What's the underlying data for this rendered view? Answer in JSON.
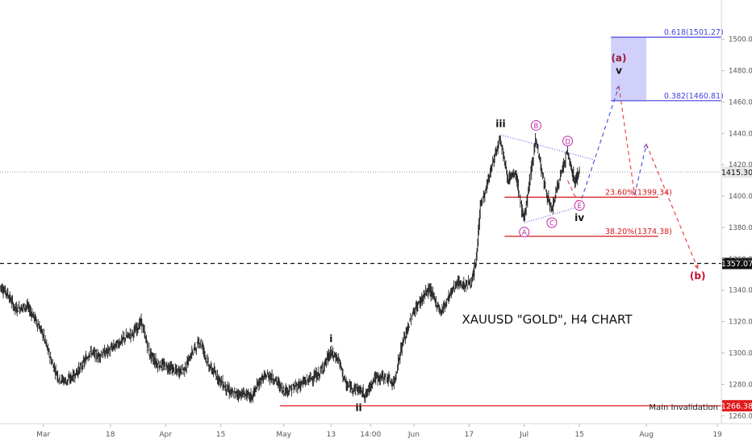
{
  "chart_data": {
    "type": "line",
    "symbol": "XAUUSD",
    "timeframe": "H4",
    "title": "XAUUSD \"GOLD\", H4 CHART",
    "xlabel": "",
    "ylabel": "",
    "ylim": [
      1255,
      1525
    ],
    "x_range": [
      "2019-02-18",
      "2019-08-20"
    ],
    "y_ticks": [
      1260,
      1280,
      1300,
      1320,
      1340,
      1360,
      1380,
      1400,
      1420,
      1440,
      1460,
      1480,
      1500
    ],
    "x_ticks": [
      {
        "date": "2019-03-01",
        "label": "Mar"
      },
      {
        "date": "2019-03-18",
        "label": "18"
      },
      {
        "date": "2019-04-01",
        "label": "Apr"
      },
      {
        "date": "2019-04-15",
        "label": "15"
      },
      {
        "date": "2019-05-01",
        "label": "May"
      },
      {
        "date": "2019-05-13",
        "label": "13"
      },
      {
        "date": "2019-05-23",
        "label": "14:00"
      },
      {
        "date": "2019-06-03",
        "label": "Jun"
      },
      {
        "date": "2019-06-17",
        "label": "17"
      },
      {
        "date": "2019-07-01",
        "label": "Jul"
      },
      {
        "date": "2019-07-15",
        "label": "15"
      },
      {
        "date": "2019-08-01",
        "label": "Aug"
      },
      {
        "date": "2019-08-19",
        "label": "19"
      }
    ],
    "price_path": [
      {
        "d": "2019-02-18",
        "p": 1343
      },
      {
        "d": "2019-02-20",
        "p": 1338
      },
      {
        "d": "2019-02-22",
        "p": 1328
      },
      {
        "d": "2019-02-25",
        "p": 1330
      },
      {
        "d": "2019-02-27",
        "p": 1322
      },
      {
        "d": "2019-03-01",
        "p": 1312
      },
      {
        "d": "2019-03-03",
        "p": 1296
      },
      {
        "d": "2019-03-05",
        "p": 1284
      },
      {
        "d": "2019-03-07",
        "p": 1282
      },
      {
        "d": "2019-03-09",
        "p": 1286
      },
      {
        "d": "2019-03-11",
        "p": 1292
      },
      {
        "d": "2019-03-13",
        "p": 1301
      },
      {
        "d": "2019-03-15",
        "p": 1298
      },
      {
        "d": "2019-03-18",
        "p": 1302
      },
      {
        "d": "2019-03-20",
        "p": 1306
      },
      {
        "d": "2019-03-22",
        "p": 1310
      },
      {
        "d": "2019-03-24",
        "p": 1313
      },
      {
        "d": "2019-03-26",
        "p": 1320
      },
      {
        "d": "2019-03-28",
        "p": 1300
      },
      {
        "d": "2019-03-30",
        "p": 1293
      },
      {
        "d": "2019-04-02",
        "p": 1291
      },
      {
        "d": "2019-04-04",
        "p": 1288
      },
      {
        "d": "2019-04-06",
        "p": 1290
      },
      {
        "d": "2019-04-08",
        "p": 1301
      },
      {
        "d": "2019-04-10",
        "p": 1308
      },
      {
        "d": "2019-04-12",
        "p": 1292
      },
      {
        "d": "2019-04-14",
        "p": 1286
      },
      {
        "d": "2019-04-16",
        "p": 1279
      },
      {
        "d": "2019-04-18",
        "p": 1274
      },
      {
        "d": "2019-04-21",
        "p": 1274
      },
      {
        "d": "2019-04-23",
        "p": 1272
      },
      {
        "d": "2019-04-25",
        "p": 1282
      },
      {
        "d": "2019-04-27",
        "p": 1286
      },
      {
        "d": "2019-04-29",
        "p": 1283
      },
      {
        "d": "2019-05-01",
        "p": 1276
      },
      {
        "d": "2019-05-03",
        "p": 1277
      },
      {
        "d": "2019-05-06",
        "p": 1281
      },
      {
        "d": "2019-05-08",
        "p": 1284
      },
      {
        "d": "2019-05-10",
        "p": 1286
      },
      {
        "d": "2019-05-13",
        "p": 1300
      },
      {
        "d": "2019-05-15",
        "p": 1296
      },
      {
        "d": "2019-05-17",
        "p": 1279
      },
      {
        "d": "2019-05-20",
        "p": 1277
      },
      {
        "d": "2019-05-22",
        "p": 1273
      },
      {
        "d": "2019-05-24",
        "p": 1284
      },
      {
        "d": "2019-05-27",
        "p": 1285
      },
      {
        "d": "2019-05-29",
        "p": 1280
      },
      {
        "d": "2019-05-31",
        "p": 1304
      },
      {
        "d": "2019-06-03",
        "p": 1326
      },
      {
        "d": "2019-06-05",
        "p": 1334
      },
      {
        "d": "2019-06-07",
        "p": 1341
      },
      {
        "d": "2019-06-10",
        "p": 1326
      },
      {
        "d": "2019-06-12",
        "p": 1336
      },
      {
        "d": "2019-06-14",
        "p": 1345
      },
      {
        "d": "2019-06-16",
        "p": 1343
      },
      {
        "d": "2019-06-18",
        "p": 1346
      },
      {
        "d": "2019-06-19",
        "p": 1360
      },
      {
        "d": "2019-06-20",
        "p": 1395
      },
      {
        "d": "2019-06-21",
        "p": 1400
      },
      {
        "d": "2019-06-23",
        "p": 1420
      },
      {
        "d": "2019-06-25",
        "p": 1438
      },
      {
        "d": "2019-06-27",
        "p": 1411
      },
      {
        "d": "2019-06-29",
        "p": 1414
      },
      {
        "d": "2019-07-01",
        "p": 1384
      },
      {
        "d": "2019-07-03",
        "p": 1418
      },
      {
        "d": "2019-07-04",
        "p": 1437
      },
      {
        "d": "2019-07-06",
        "p": 1410
      },
      {
        "d": "2019-07-08",
        "p": 1390
      },
      {
        "d": "2019-07-10",
        "p": 1410
      },
      {
        "d": "2019-07-12",
        "p": 1428
      },
      {
        "d": "2019-07-14",
        "p": 1409
      },
      {
        "d": "2019-07-15",
        "p": 1416
      }
    ],
    "levels": [
      {
        "label": "1357.07",
        "price": 1357.07,
        "style": "dashed-black"
      },
      {
        "label": "1266.38",
        "price": 1266.38,
        "style": "solid-red"
      },
      {
        "label": "1415.30",
        "price": 1415.3,
        "style": "dotted-grey"
      }
    ],
    "fibonacci": [
      {
        "label": "0.618(1501.27)",
        "price": 1501.27
      },
      {
        "label": "0.382(1460.81)",
        "price": 1460.81
      },
      {
        "label": "23.60%(1399.34)",
        "price": 1399.34
      },
      {
        "label": "38.20%(1374.38)",
        "price": 1374.38
      }
    ],
    "target_zone": {
      "from": 1460.81,
      "to": 1501.27,
      "color": "#c8c8fa"
    },
    "wave_labels": [
      {
        "text": "i",
        "d": "2019-05-13",
        "p": 1307,
        "color": "#111111"
      },
      {
        "text": "ii",
        "d": "2019-05-20",
        "p": 1263,
        "color": "#111111"
      },
      {
        "text": "iii",
        "d": "2019-06-25",
        "p": 1444,
        "color": "#111111"
      },
      {
        "text": "iv",
        "d": "2019-07-15",
        "p": 1384,
        "color": "#111111"
      },
      {
        "text": "v",
        "d": "2019-07-25",
        "p": 1478,
        "color": "#111111"
      },
      {
        "text": "(a)",
        "d": "2019-07-25",
        "p": 1486,
        "color": "#9b1b3a"
      },
      {
        "text": "(b)",
        "d": "2019-08-14",
        "p": 1347,
        "color": "#c8102e"
      },
      {
        "text": "A",
        "d": "2019-07-01",
        "p": 1375,
        "color": "#c026a8",
        "circled": true
      },
      {
        "text": "B",
        "d": "2019-07-04",
        "p": 1443,
        "color": "#c026a8",
        "circled": true
      },
      {
        "text": "C",
        "d": "2019-07-08",
        "p": 1381,
        "color": "#c026a8",
        "circled": true
      },
      {
        "text": "D",
        "d": "2019-07-12",
        "p": 1433,
        "color": "#c026a8",
        "circled": true
      },
      {
        "text": "E",
        "d": "2019-07-15",
        "p": 1392,
        "color": "#c026a8",
        "circled": true
      }
    ],
    "triangle_lines": [
      [
        {
          "d": "2019-06-25",
          "p": 1439
        },
        {
          "d": "2019-07-19",
          "p": 1423
        }
      ],
      [
        {
          "d": "2019-07-01",
          "p": 1383
        },
        {
          "d": "2019-07-16",
          "p": 1394
        }
      ]
    ],
    "projections": [
      {
        "color": "#5555e0",
        "points": [
          {
            "d": "2019-07-15",
            "p": 1394
          },
          {
            "d": "2019-07-25",
            "p": 1470
          }
        ]
      },
      {
        "color": "#e84545",
        "points": [
          {
            "d": "2019-07-25",
            "p": 1470
          },
          {
            "d": "2019-07-29",
            "p": 1401
          }
        ]
      },
      {
        "color": "#5555e0",
        "points": [
          {
            "d": "2019-07-29",
            "p": 1401
          },
          {
            "d": "2019-08-01",
            "p": 1433
          }
        ]
      },
      {
        "color": "#e84545",
        "points": [
          {
            "d": "2019-08-01",
            "p": 1433
          },
          {
            "d": "2019-08-14",
            "p": 1354
          }
        ]
      },
      {
        "color": "#e84545",
        "points": [
          {
            "d": "2019-07-12",
            "p": 1410
          },
          {
            "d": "2019-07-15",
            "p": 1394
          }
        ]
      }
    ],
    "annotations": {
      "main_invalidation": "Main Invalidation",
      "chart_title": "XAUUSD \"GOLD\", H4 CHART"
    },
    "colors": {
      "candle": "#222222",
      "fib_blue": "#4444dd",
      "fib_red": "#d41a1a",
      "invalidation": "#e01a1a",
      "zone": "#c8c8fa",
      "projection_blue": "#5555e0",
      "projection_red": "#e84545"
    },
    "grid": false,
    "legend": "none"
  }
}
